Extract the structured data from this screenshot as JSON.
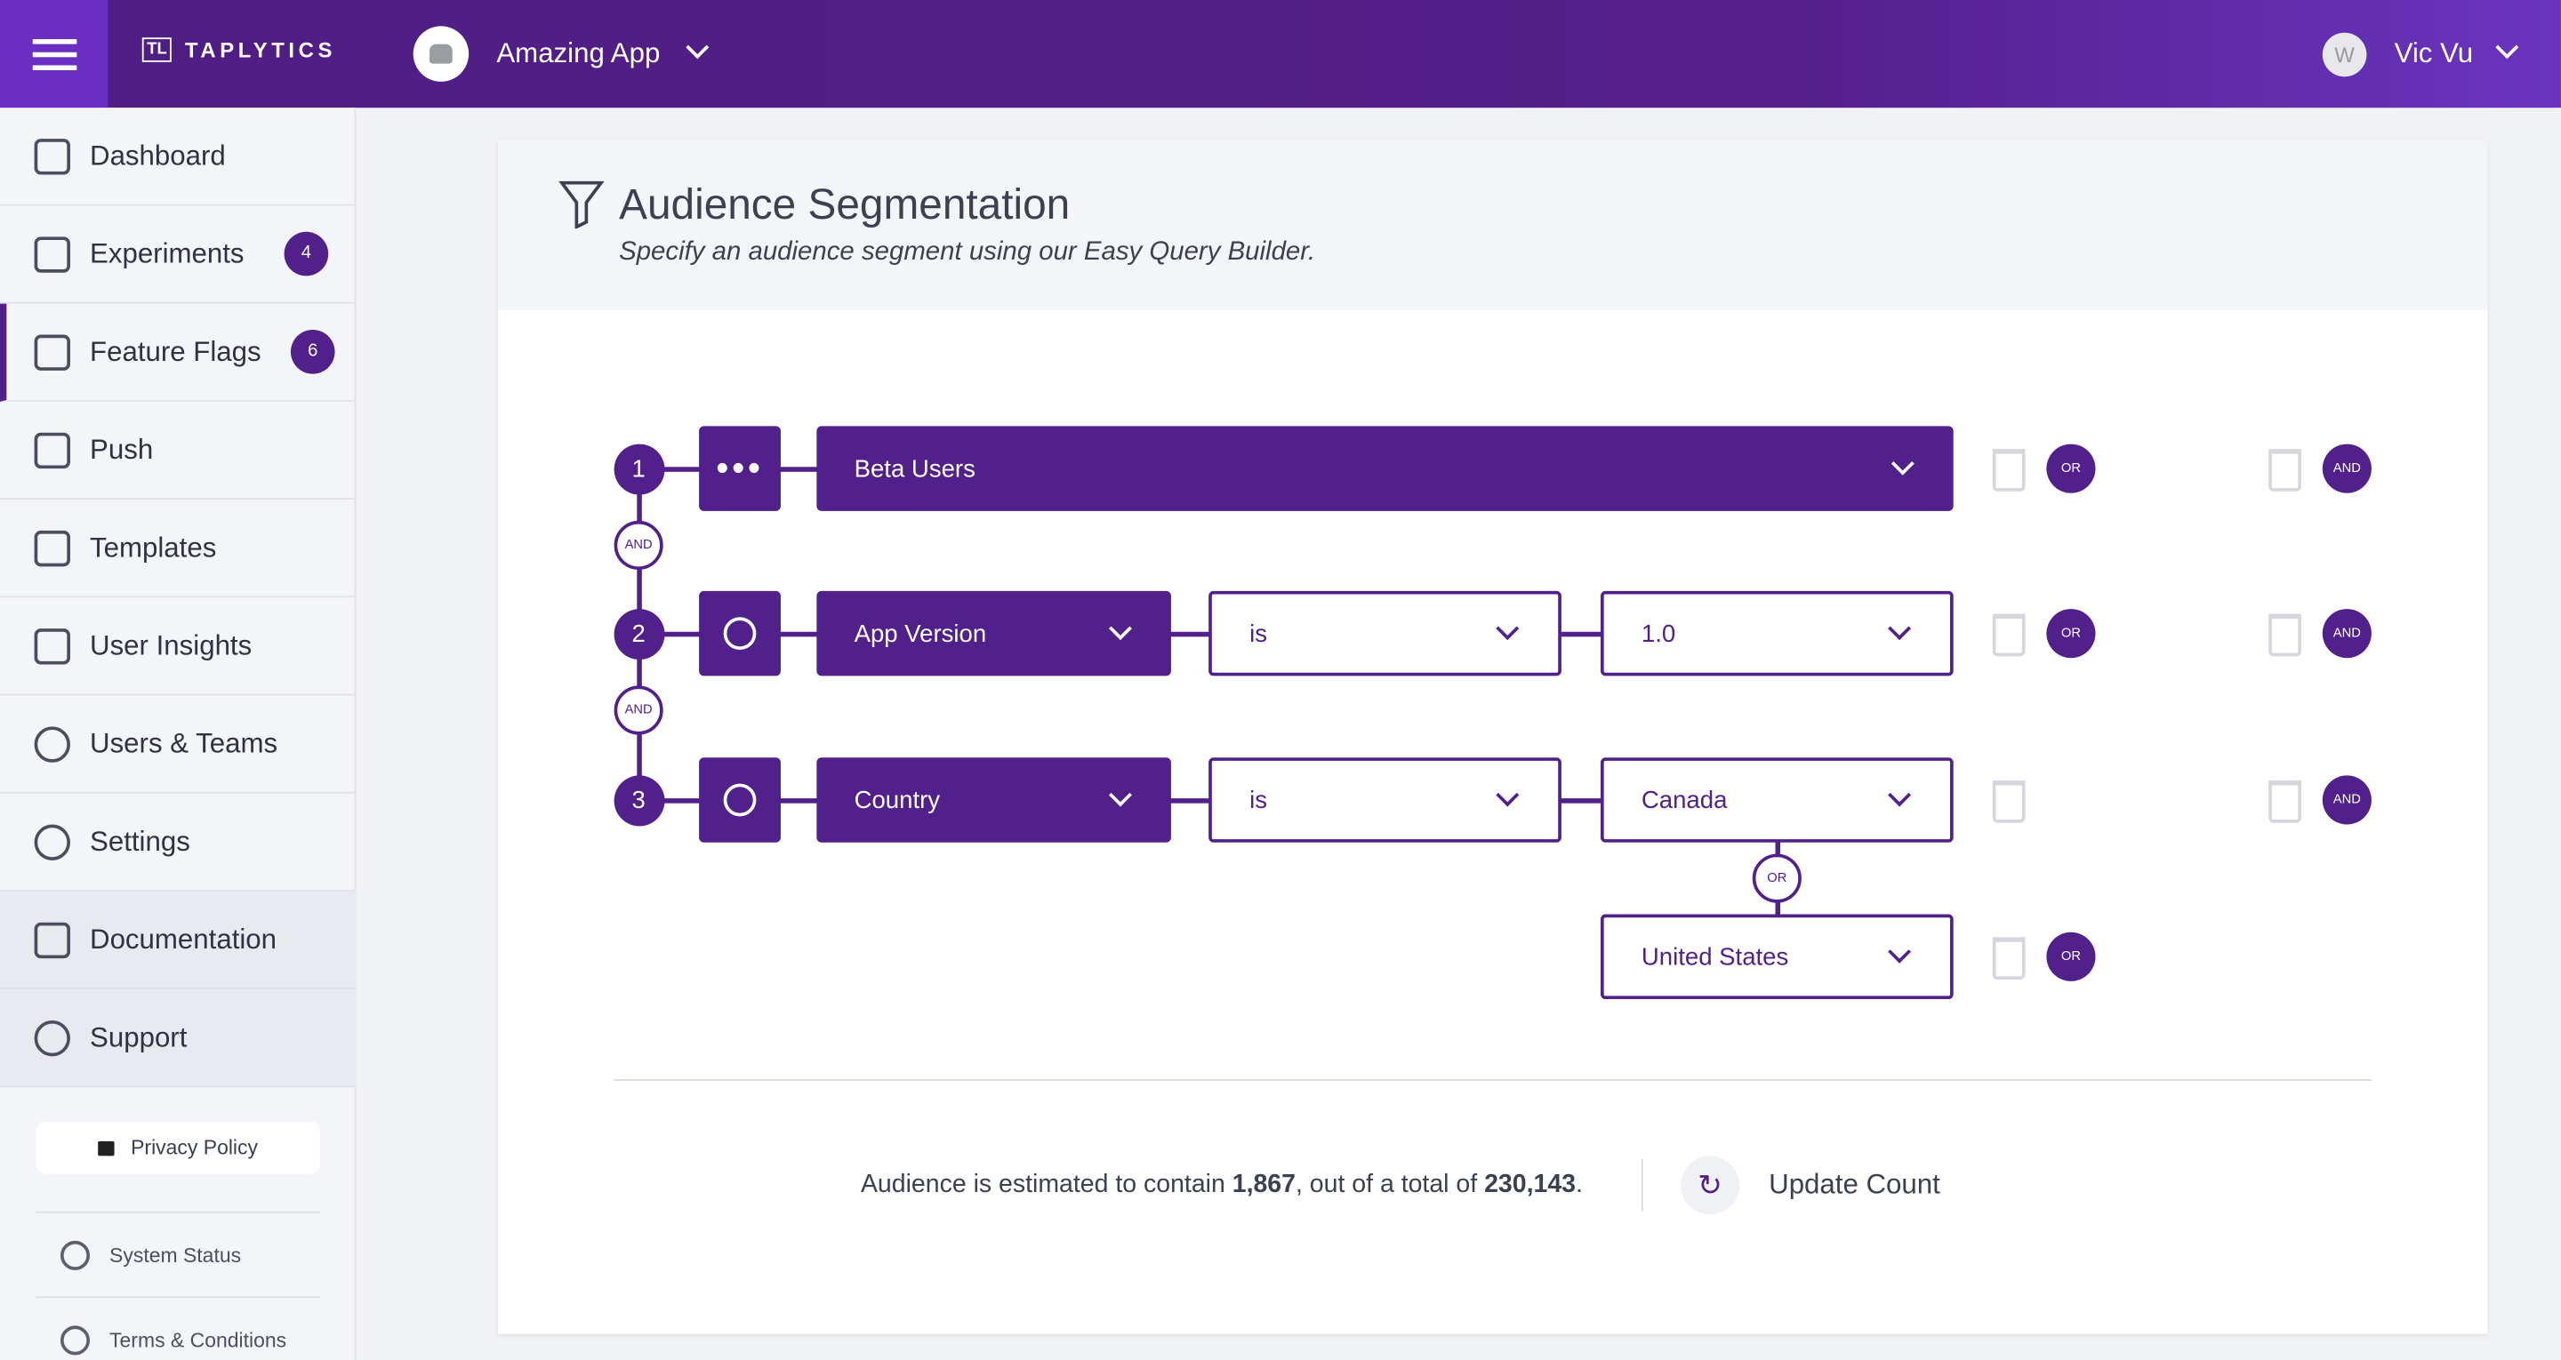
{
  "header": {
    "logo": "TAPLYTICS",
    "logo_mark": "TL",
    "app_name": "Amazing App",
    "user_initial": "W",
    "user_name": "Vic Vu"
  },
  "sidebar": {
    "items": [
      {
        "label": "Dashboard",
        "icon": "home-icon"
      },
      {
        "label": "Experiments",
        "icon": "flask-icon",
        "badge": "4"
      },
      {
        "label": "Feature Flags",
        "icon": "flag-icon",
        "badge": "6",
        "active": true
      },
      {
        "label": "Push",
        "icon": "push-icon"
      },
      {
        "label": "Templates",
        "icon": "template-icon"
      },
      {
        "label": "User Insights",
        "icon": "bar-chart-icon"
      },
      {
        "label": "Users & Teams",
        "icon": "users-icon"
      },
      {
        "label": "Settings",
        "icon": "gear-icon"
      },
      {
        "label": "Documentation",
        "icon": "document-icon"
      },
      {
        "label": "Support",
        "icon": "help-icon"
      }
    ],
    "privacy": "Privacy Policy",
    "system_status": "System Status",
    "terms": "Terms & Conditions"
  },
  "main": {
    "title": "Audience Segmentation",
    "subtitle": "Specify an audience segment using our Easy Query Builder.",
    "rules": [
      {
        "number": "1",
        "field": "Beta Users"
      },
      {
        "number": "2",
        "field": "App Version",
        "operator": "is",
        "value": "1.0"
      },
      {
        "number": "3",
        "field": "Country",
        "operator": "is",
        "value": "Canada",
        "or_value": "United States"
      }
    ],
    "and_label": "AND",
    "or_label": "OR",
    "estimate_prefix": "Audience is estimated to contain ",
    "estimate_count": "1,867",
    "estimate_mid": ", out of a total of ",
    "estimate_total": "230,143",
    "estimate_suffix": ".",
    "update_count": "Update Count"
  },
  "colors": {
    "brand": "#52208a",
    "brand_light": "#6a2fc2"
  }
}
